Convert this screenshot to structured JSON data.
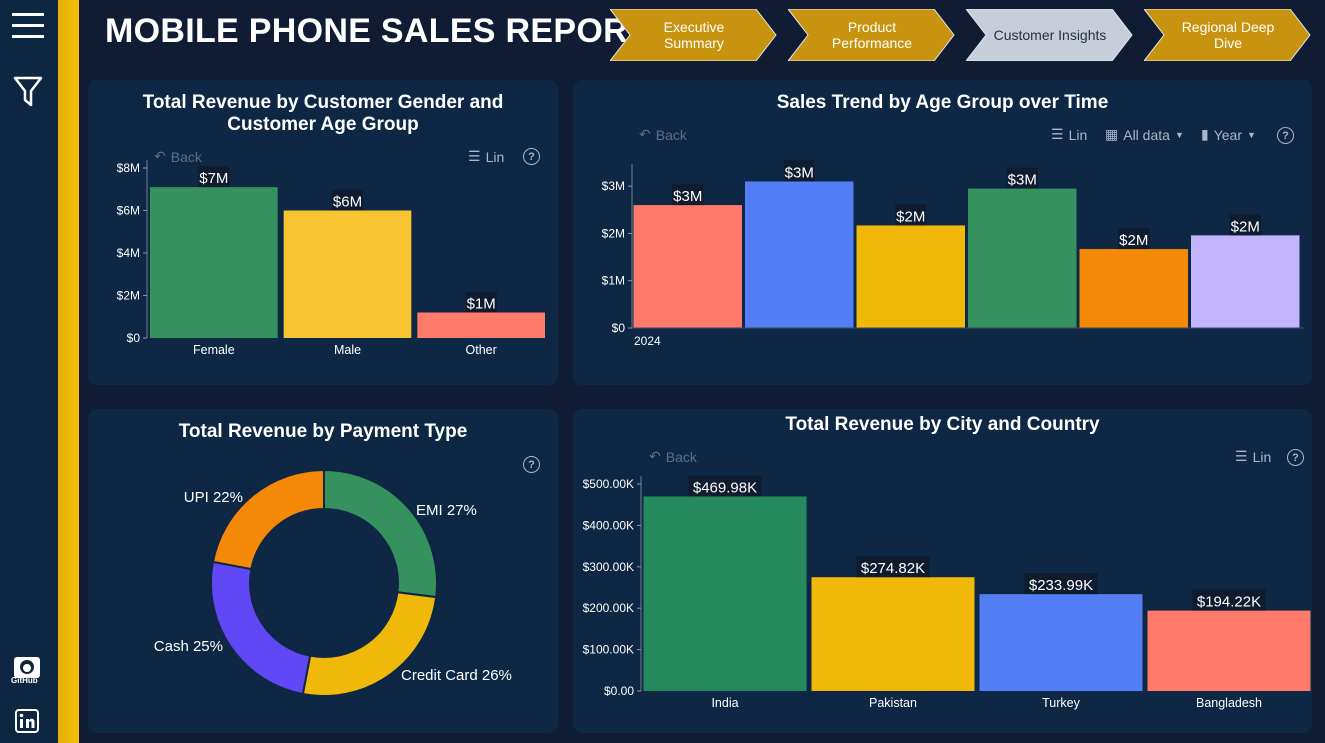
{
  "header": {
    "title": "MOBILE PHONE SALES REPORT",
    "nav": [
      {
        "line1": "Executive",
        "line2": "Summary",
        "active": false
      },
      {
        "line1": "Product",
        "line2": "Performance",
        "active": false
      },
      {
        "line1": "Customer Insights",
        "line2": "",
        "active": true
      },
      {
        "line1": "Regional Deep",
        "line2": "Dive",
        "active": false
      }
    ],
    "nav_color": "#c8940f",
    "nav_active_color": "#c7ced9"
  },
  "sidebar": {
    "menu_icon": "hamburger-menu-icon",
    "filter_icon": "filter-funnel-icon",
    "github_label": "GitHub",
    "github_icon": "github-icon",
    "linkedin_icon": "linkedin-icon"
  },
  "toolbar": {
    "back_label": "Back",
    "lin_label": "Lin",
    "all_data_label": "All data",
    "year_label": "Year",
    "help_label": "?"
  },
  "chart_data": [
    {
      "type": "bar",
      "title": "Total Revenue by Customer Gender and Customer Age Group",
      "categories": [
        "Female",
        "Male",
        "Other"
      ],
      "values": [
        7.1,
        6.0,
        1.2
      ],
      "data_labels": [
        "$7M",
        "$6M",
        "$1M"
      ],
      "colors": [
        "#35915d",
        "#f7c531",
        "#fe7a6a"
      ],
      "y_ticks": [
        0,
        2,
        4,
        6,
        8
      ],
      "y_tick_labels": [
        "$0",
        "$2M",
        "$4M",
        "$6M",
        "$8M"
      ],
      "ylim": [
        0,
        8
      ],
      "grid": false
    },
    {
      "type": "bar",
      "title": "Sales Trend by Age Group over Time",
      "categories": [
        "",
        "",
        "",
        "",
        "",
        ""
      ],
      "x_label_first": "2024",
      "values": [
        2.6,
        3.1,
        2.17,
        2.95,
        1.67,
        1.96
      ],
      "data_labels": [
        "$3M",
        "$3M",
        "$2M",
        "$3M",
        "$2M",
        "$2M"
      ],
      "colors": [
        "#fe7a6a",
        "#547ef5",
        "#f0b808",
        "#35915d",
        "#f38907",
        "#c2b5fb"
      ],
      "y_ticks": [
        0,
        1,
        2,
        3
      ],
      "y_tick_labels": [
        "$0",
        "$1M",
        "$2M",
        "$3M"
      ],
      "ylim": [
        0,
        3.3
      ],
      "grid": false
    },
    {
      "type": "pie",
      "title": "Total Revenue by Payment Type",
      "slices": [
        {
          "label": "EMI 27%",
          "value": 27,
          "color": "#35915d"
        },
        {
          "label": "Credit Card 26%",
          "value": 26,
          "color": "#f0b808"
        },
        {
          "label": "Cash 25%",
          "value": 25,
          "color": "#6148f7"
        },
        {
          "label": "UPI 22%",
          "value": 22,
          "color": "#f38907"
        }
      ]
    },
    {
      "type": "bar",
      "title": "Total Revenue by City and Country",
      "categories": [
        "India",
        "Pakistan",
        "Turkey",
        "Bangladesh"
      ],
      "values": [
        469.98,
        274.82,
        233.99,
        194.22
      ],
      "data_labels": [
        "$469.98K",
        "$274.82K",
        "$233.99K",
        "$194.22K"
      ],
      "colors": [
        "#248a5e",
        "#f0b808",
        "#547ef5",
        "#fe7a6a"
      ],
      "y_ticks": [
        0,
        100,
        200,
        300,
        400,
        500
      ],
      "y_tick_labels": [
        "$0.00",
        "$100.00K",
        "$200.00K",
        "$300.00K",
        "$400.00K",
        "$500.00K"
      ],
      "ylim": [
        0,
        500
      ],
      "grid": false
    }
  ]
}
